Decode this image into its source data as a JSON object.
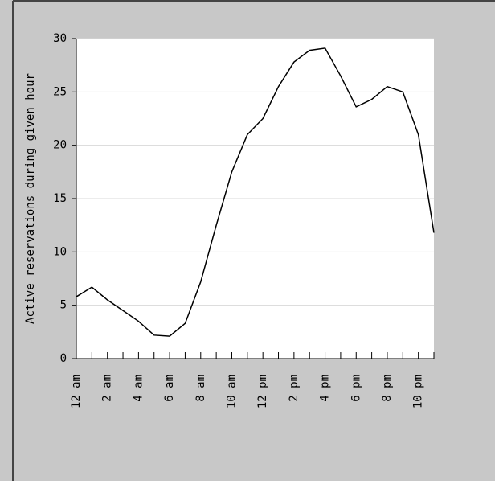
{
  "chart_data": {
    "type": "line",
    "y_label": "Active reservations during given hour",
    "categories": [
      "12 am",
      null,
      "2 am",
      null,
      "4 am",
      null,
      "6 am",
      null,
      "8 am",
      null,
      "10 am",
      null,
      "12 pm",
      null,
      "2 pm",
      null,
      "4 pm",
      null,
      "6 pm",
      null,
      "8 pm",
      null,
      "10 pm",
      null
    ],
    "series": [
      {
        "name": "Active reservations",
        "color": "#000000",
        "values": [
          5.8,
          6.7,
          5.5,
          4.5,
          3.5,
          2.2,
          2.1,
          3.3,
          7.2,
          12.5,
          17.5,
          21,
          22.5,
          25.5,
          27.8,
          28.9,
          29.1,
          26.5,
          23.6,
          24.3,
          25.5,
          25,
          21,
          11.8
        ]
      }
    ],
    "ylim": [
      0,
      30
    ],
    "yticks": [
      0,
      5,
      10,
      15,
      20,
      25,
      30
    ],
    "grid": true
  }
}
